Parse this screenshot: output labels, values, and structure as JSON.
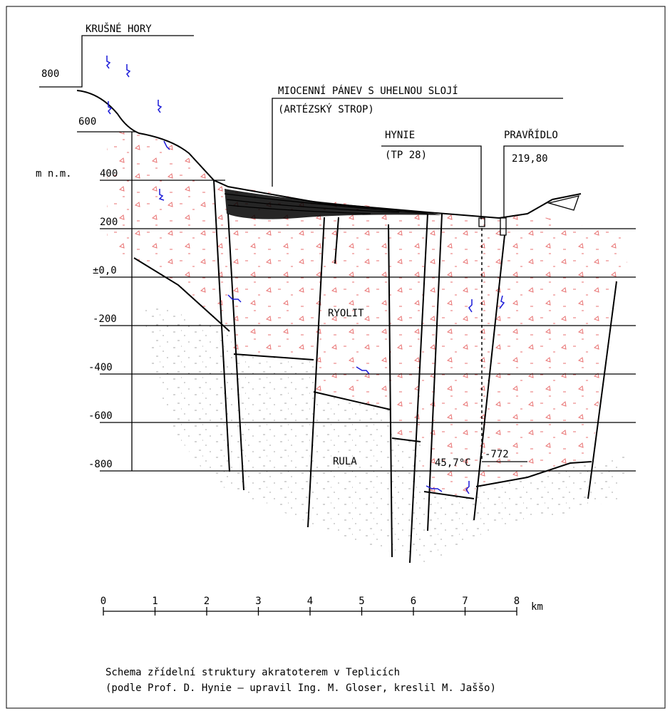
{
  "header": {
    "label": "KRUŠNÉ HORY"
  },
  "elevations": [
    "800",
    "600",
    "400",
    "200",
    "±0,0",
    "-200",
    "-400",
    "-600",
    "-800"
  ],
  "unit": "m n.m.",
  "annotations": {
    "basin": "MIOCENNÍ PÁNEV S UHELNOU SLOJÍ",
    "basin_note": "(ARTÉZSKÝ STROP)",
    "well": "HYNIE",
    "well_note": "(TP 28)",
    "spring": "PRAVŘÍDLO",
    "spring_note": "219,80",
    "rock_upper": "RYOLIT",
    "rock_lower": "RULA",
    "temperature": "45,7°C",
    "depth": "-772"
  },
  "scale": {
    "ticks": [
      0,
      1,
      2,
      3,
      4,
      5,
      6,
      7,
      8
    ],
    "unit": "km"
  },
  "caption": [
    "Schema zřídelní struktury akratoterem v Teplicích",
    "(podle Prof. D. Hynie – upravil Ing. M. Gloser, kreslil M. Jaššo)"
  ]
}
